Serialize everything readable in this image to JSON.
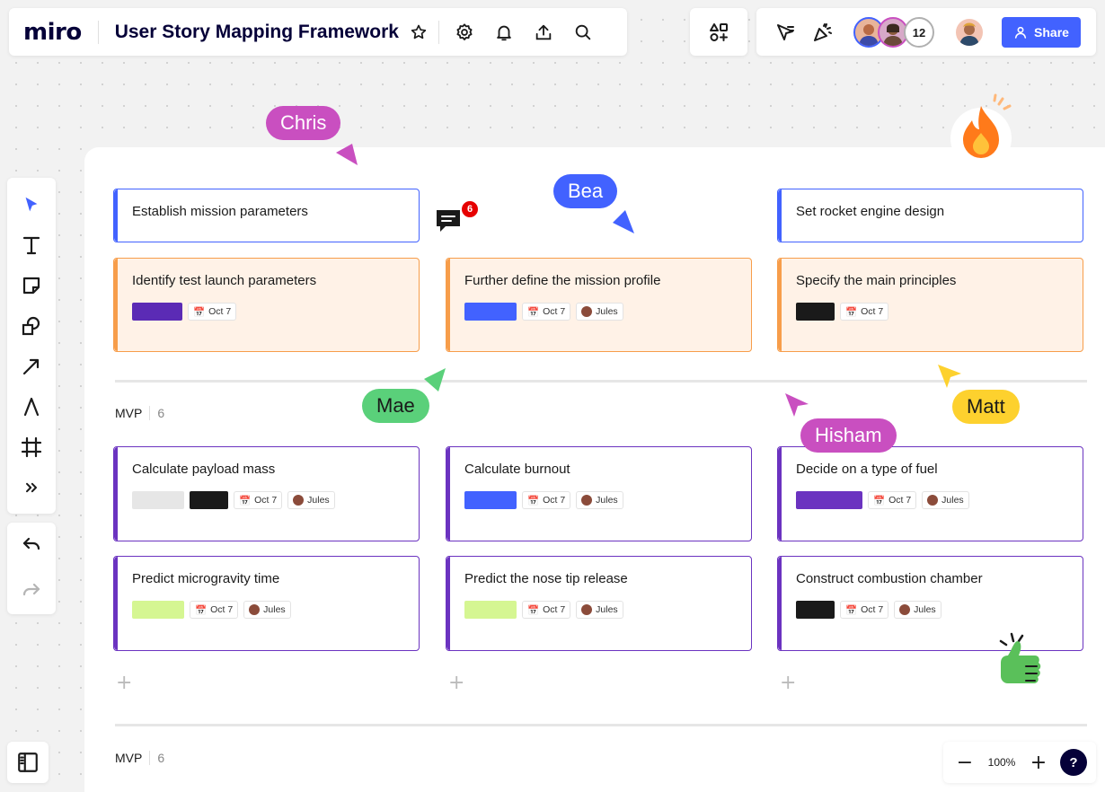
{
  "app": {
    "logo": "miro",
    "board_title": "User Story Mapping Framework",
    "share_label": "Share",
    "collaborator_count": "12"
  },
  "toolbar": {
    "tools": [
      "select-icon",
      "text-icon",
      "sticky-note-icon",
      "shapes-icon",
      "arrow-icon",
      "pen-icon",
      "frame-icon",
      "more-tools-icon"
    ]
  },
  "zoom": {
    "level": "100%",
    "help": "?"
  },
  "comments": {
    "count": "6"
  },
  "sections": [
    {
      "label": "MVP",
      "count": "6"
    },
    {
      "label": "MVP",
      "count": "6"
    }
  ],
  "activities": [
    {
      "title": "Establish mission parameters"
    },
    {
      "title": "Set rocket engine design"
    }
  ],
  "steps": [
    {
      "title": "Identify test launch parameters",
      "date": "Oct 7",
      "assignee": "",
      "chips": [
        "#5b2bb5"
      ]
    },
    {
      "title": "Further define the mission profile",
      "date": "Oct 7",
      "assignee": "Jules",
      "chips": [
        "#4262ff"
      ]
    },
    {
      "title": "Specify the main principles",
      "date": "Oct 7",
      "assignee": "",
      "chips": [
        "#1a1a1a"
      ]
    }
  ],
  "stories": [
    {
      "title": "Calculate payload mass",
      "date": "Oct 7",
      "assignee": "Jules",
      "chips": [
        "#e6e6e6",
        "#1a1a1a"
      ]
    },
    {
      "title": "Calculate burnout",
      "date": "Oct 7",
      "assignee": "Jules",
      "chips": [
        "#4262ff"
      ]
    },
    {
      "title": "Decide on a type of fuel",
      "date": "Oct 7",
      "assignee": "Jules",
      "chips": [
        "#6b33c0"
      ]
    },
    {
      "title": "Predict microgravity time",
      "date": "Oct 7",
      "assignee": "Jules",
      "chips": [
        "#d5f692"
      ]
    },
    {
      "title": "Predict the nose tip release",
      "date": "Oct 7",
      "assignee": "Jules",
      "chips": [
        "#d5f692"
      ]
    },
    {
      "title": "Construct combustion chamber",
      "date": "Oct 7",
      "assignee": "Jules",
      "chips": [
        "#1a1a1a"
      ]
    }
  ],
  "cursors": [
    {
      "name": "Chris",
      "color": "#c94fc0"
    },
    {
      "name": "Bea",
      "color": "#4262ff"
    },
    {
      "name": "Mae",
      "color": "#5ad07a"
    },
    {
      "name": "Hisham",
      "color": "#c94fc0"
    },
    {
      "name": "Matt",
      "color": "#fdd12e"
    }
  ],
  "colors": {
    "accent": "#4262ff",
    "activity": "#4262ff",
    "step": "#f79d4a",
    "story": "#6b33c0"
  }
}
